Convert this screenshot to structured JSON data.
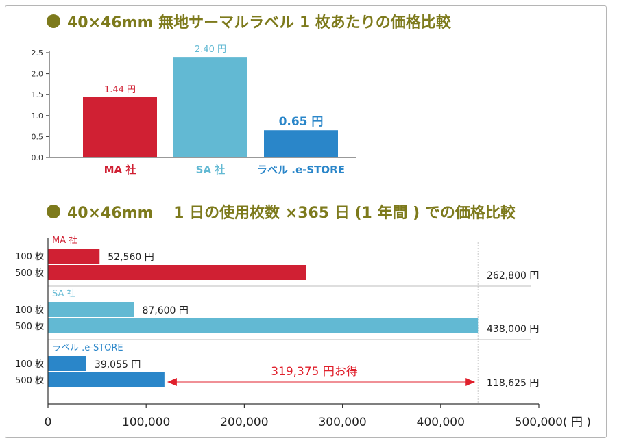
{
  "colors": {
    "heading": "#7d7a1c",
    "ma": "#d02033",
    "sa": "#62b9d3",
    "label": "#2a86c9",
    "savings": "#e0202c",
    "axis": "#333333",
    "separator": "#bdbdbd"
  },
  "headings": {
    "chart1": "40×46mm 無地サーマルラベル 1 枚あたりの価格比較",
    "chart2": "40×46mm　 1 日の使用枚数 ×365 日 (1 年間 ) での価格比較"
  },
  "chart_data": [
    {
      "type": "bar",
      "title": "40×46mm 無地サーマルラベル 1 枚あたりの価格比較",
      "categories": [
        "MA 社",
        "SA 社",
        "ラベル .e-STORE"
      ],
      "values": [
        1.44,
        2.4,
        0.65
      ],
      "data_labels": [
        "1.44 円",
        "2.40 円",
        "0.65 円"
      ],
      "category_colors": [
        "#d02033",
        "#62b9d3",
        "#2a86c9"
      ],
      "ylim": [
        0,
        2.5
      ],
      "yticks": [
        0.0,
        0.5,
        1.0,
        1.5,
        2.0,
        2.5
      ],
      "ytick_labels": [
        "0.0",
        "0.5",
        "1.0",
        "1.5",
        "2.0",
        "2.5"
      ],
      "grid": false,
      "xlabel": "",
      "ylabel": ""
    },
    {
      "type": "bar",
      "orientation": "horizontal",
      "title": "40×46mm　 1 日の使用枚数 ×365 日 (1 年間 ) での価格比較",
      "groups": [
        {
          "name": "MA 社",
          "color": "#d02033",
          "rows": [
            {
              "label": "100 枚",
              "value": 52560,
              "value_label": "52,560 円"
            },
            {
              "label": "500 枚",
              "value": 262800,
              "value_label": "262,800 円"
            }
          ]
        },
        {
          "name": "SA 社",
          "color": "#62b9d3",
          "rows": [
            {
              "label": "100 枚",
              "value": 87600,
              "value_label": "87,600 円"
            },
            {
              "label": "500 枚",
              "value": 438000,
              "value_label": "438,000 円"
            }
          ]
        },
        {
          "name": "ラベル .e-STORE",
          "color": "#2a86c9",
          "rows": [
            {
              "label": "100 枚",
              "value": 39055,
              "value_label": "39,055 円"
            },
            {
              "label": "500 枚",
              "value": 118625,
              "value_label": "118,625 円"
            }
          ]
        }
      ],
      "xlim": [
        0,
        500000
      ],
      "xticks": [
        0,
        100000,
        200000,
        300000,
        400000,
        500000
      ],
      "xtick_labels": [
        "0",
        "100,000",
        "200,000",
        "300,000",
        "400,000",
        "500,000( 円 )"
      ],
      "reference_value": 438000,
      "annotation": {
        "text": "319,375 円お得",
        "from": 118625,
        "to": 438000
      },
      "grid": false
    }
  ]
}
